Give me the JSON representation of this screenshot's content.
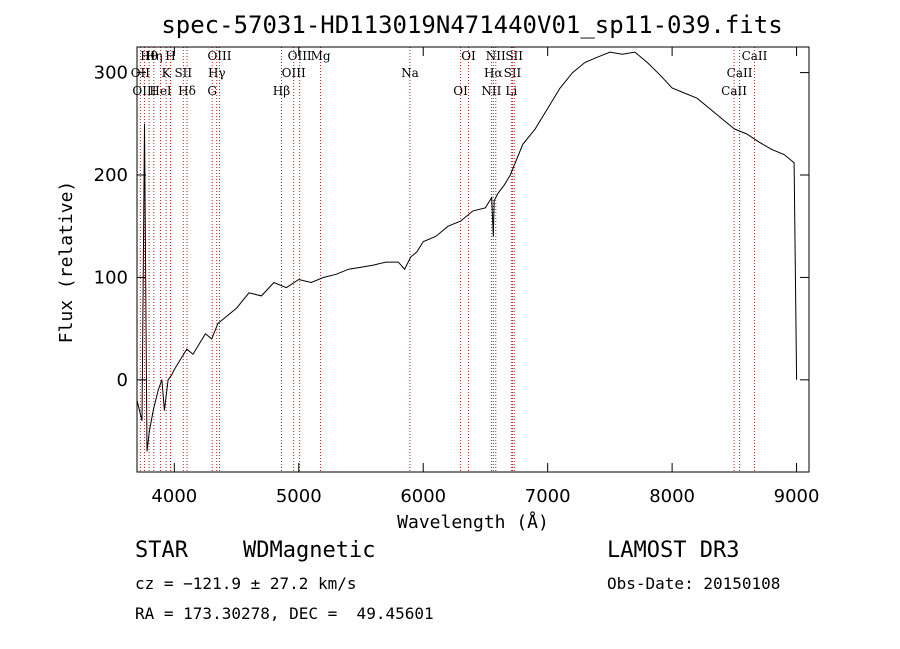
{
  "chart_data": {
    "type": "line",
    "title": "spec-57031-HD113019N471440V01_sp11-039.fits",
    "xlabel": "Wavelength (Å)",
    "ylabel": "Flux (relative)",
    "xlim": [
      3700,
      9100
    ],
    "ylim": [
      -90,
      325
    ],
    "xticks": [
      4000,
      5000,
      6000,
      7000,
      8000,
      9000
    ],
    "yticks": [
      0,
      100,
      200,
      300
    ],
    "series": [
      {
        "name": "flux",
        "x": [
          3700,
          3740,
          3760,
          3780,
          3800,
          3830,
          3850,
          3870,
          3900,
          3920,
          3950,
          3980,
          4000,
          4050,
          4100,
          4150,
          4200,
          4250,
          4300,
          4350,
          4400,
          4500,
          4600,
          4700,
          4800,
          4900,
          5000,
          5100,
          5200,
          5300,
          5400,
          5500,
          5600,
          5700,
          5800,
          5850,
          5900,
          5950,
          6000,
          6100,
          6200,
          6300,
          6400,
          6500,
          6550,
          6563,
          6570,
          6600,
          6650,
          6700,
          6800,
          6900,
          7000,
          7100,
          7200,
          7300,
          7400,
          7500,
          7600,
          7700,
          7800,
          7900,
          8000,
          8100,
          8200,
          8300,
          8400,
          8500,
          8600,
          8700,
          8800,
          8900,
          8980,
          9000
        ],
        "y": [
          -20,
          -40,
          250,
          -70,
          -50,
          -30,
          -20,
          -10,
          0,
          -30,
          0,
          5,
          10,
          20,
          30,
          25,
          35,
          45,
          40,
          55,
          60,
          70,
          85,
          82,
          95,
          90,
          98,
          95,
          100,
          103,
          108,
          110,
          112,
          115,
          115,
          108,
          120,
          125,
          135,
          140,
          150,
          155,
          165,
          168,
          178,
          140,
          175,
          182,
          190,
          200,
          230,
          245,
          265,
          285,
          300,
          310,
          315,
          320,
          318,
          320,
          310,
          298,
          285,
          280,
          275,
          265,
          255,
          245,
          240,
          232,
          225,
          220,
          212,
          0
        ]
      }
    ],
    "spectral_lines": [
      {
        "name": "Hθ",
        "x": 3797
      },
      {
        "name": "OII",
        "x": 3727
      },
      {
        "name": "OIII",
        "x": 3760
      },
      {
        "name": "Hη",
        "x": 3835
      },
      {
        "name": "K",
        "x": 3934
      },
      {
        "name": "HeI",
        "x": 3889
      },
      {
        "name": "H",
        "x": 3969
      },
      {
        "name": "SII",
        "x": 4072
      },
      {
        "name": "Hδ",
        "x": 4102
      },
      {
        "name": "OIII",
        "x": 4363
      },
      {
        "name": "Hγ",
        "x": 4341
      },
      {
        "name": "G",
        "x": 4304
      },
      {
        "name": "OIII",
        "x": 5007
      },
      {
        "name": "OIII",
        "x": 4959
      },
      {
        "name": "Hβ",
        "x": 4861
      },
      {
        "name": "Mg",
        "x": 5175
      },
      {
        "name": "Na",
        "x": 5893
      },
      {
        "name": "OI",
        "x": 6300
      },
      {
        "name": "OI",
        "x": 6364
      },
      {
        "name": "Hα",
        "x": 6563
      },
      {
        "name": "NII",
        "x": 6548
      },
      {
        "name": "NII",
        "x": 6583
      },
      {
        "name": "SII",
        "x": 6717
      },
      {
        "name": "Li",
        "x": 6708
      },
      {
        "name": "SII",
        "x": 6731
      },
      {
        "name": "CaII",
        "x": 8542
      },
      {
        "name": "CaII",
        "x": 8498
      },
      {
        "name": "CaII",
        "x": 8662
      }
    ]
  },
  "info": {
    "class": "STAR",
    "subclass": "WDMagnetic",
    "survey": "LAMOST DR3",
    "cz": "cz = −121.9 ± 27.2 km/s",
    "obs_date": "Obs-Date: 20150108",
    "radec": "RA = 173.30278, DEC =  49.45601"
  }
}
